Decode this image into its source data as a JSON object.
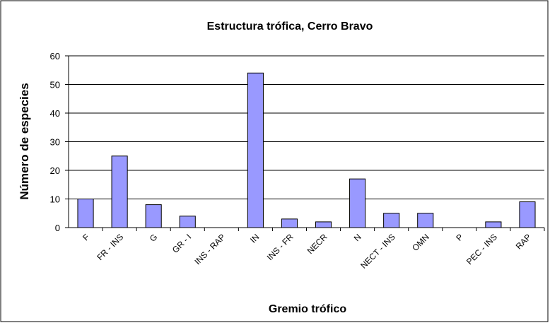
{
  "chart_data": {
    "type": "bar",
    "title": "Estructura trófica, Cerro Bravo",
    "x_label": "Gremio trófico",
    "y_label": "Número de especies",
    "categories": [
      "F",
      "FR - INS",
      "G",
      "GR - I",
      "INS - RAP",
      "IN",
      "INS - FR",
      "NECR",
      "N",
      "NECT - INS",
      "OMN",
      "P",
      "PEC - INS",
      "RAP"
    ],
    "values": [
      10,
      25,
      8,
      4,
      0,
      54,
      3,
      2,
      17,
      5,
      5,
      0,
      2,
      9
    ],
    "color": "#9999ff",
    "ylim": [
      0,
      60
    ],
    "yticks": [
      0,
      10,
      20,
      30,
      40,
      50,
      60
    ],
    "grid": true
  }
}
